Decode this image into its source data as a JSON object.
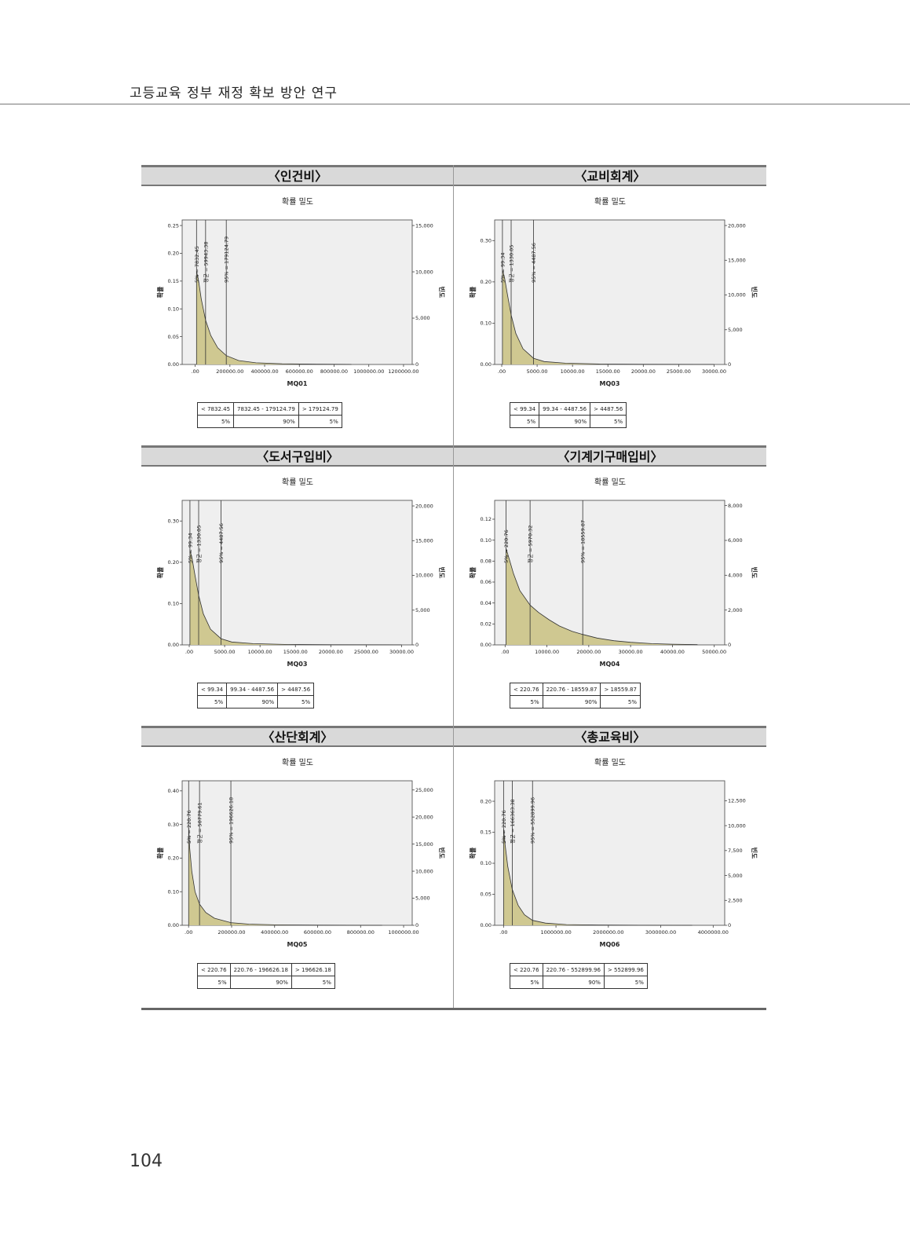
{
  "header": {
    "running_title": "고등교육 정부 재정 확보 방안 연구"
  },
  "footer": {
    "page_number": "104"
  },
  "colors": {
    "fill": "#cfc891",
    "plot_bg": "#efefef",
    "title_band": "#d9d9d9",
    "rule": "#777777"
  },
  "chart_data": [
    {
      "type": "area",
      "section_title": "〈인건비〉",
      "title": "확률 밀도",
      "xlabel": "MQ01",
      "ylabel": "확률",
      "y2label": "빈도",
      "xlim": [
        -75000,
        1250000
      ],
      "ylim": [
        0,
        0.26
      ],
      "y2lim": [
        0,
        15600
      ],
      "xticks": [
        0,
        200000,
        400000,
        600000,
        800000,
        1000000,
        1200000
      ],
      "xtick_labels": [
        ".00",
        "200000.00",
        "400000.00",
        "600000.00",
        "800000.00",
        "1000000.00",
        "1200000.00"
      ],
      "yticks": [
        0,
        0.05,
        0.1,
        0.15,
        0.2,
        0.25
      ],
      "ytick_labels": [
        "0.00",
        "0.05",
        "0.10",
        "0.15",
        "0.20",
        "0.25"
      ],
      "y2ticks": [
        0,
        5000,
        10000,
        15000
      ],
      "y2tick_labels": [
        "0",
        "5,000",
        "10,000",
        "15,000"
      ],
      "markers": [
        {
          "x": 7832.45,
          "label": "5% = 7832.45"
        },
        {
          "x": 59943.38,
          "label": "평균 = 59943.38"
        },
        {
          "x": 179124.79,
          "label": "95% = 179124.79"
        }
      ],
      "curve_x": [
        7832,
        20000,
        35000,
        59943,
        90000,
        130000,
        179125,
        250000,
        350000,
        500000,
        700000,
        900000
      ],
      "curve_y": [
        0.168,
        0.15,
        0.118,
        0.08,
        0.052,
        0.03,
        0.016,
        0.007,
        0.003,
        0.0012,
        0.0004,
        0.0001
      ],
      "summary": {
        "ranges": [
          "< 7832.45",
          "7832.45 - 179124.79",
          "> 179124.79"
        ],
        "percents": [
          "5%",
          "90%",
          "5%"
        ]
      }
    },
    {
      "type": "area",
      "section_title": "〈교비회계〉",
      "title": "확률 밀도",
      "xlabel": "MQ03",
      "ylabel": "확률",
      "y2label": "빈도",
      "xlim": [
        -1000,
        31500
      ],
      "ylim": [
        0,
        0.35
      ],
      "y2lim": [
        0,
        20800
      ],
      "xticks": [
        0,
        5000,
        10000,
        15000,
        20000,
        25000,
        30000
      ],
      "xtick_labels": [
        ".00",
        "5000.00",
        "10000.00",
        "15000.00",
        "20000.00",
        "25000.00",
        "30000.00"
      ],
      "yticks": [
        0,
        0.1,
        0.2,
        0.3
      ],
      "ytick_labels": [
        "0.00",
        "0.10",
        "0.20",
        "0.30"
      ],
      "y2ticks": [
        0,
        5000,
        10000,
        15000,
        20000
      ],
      "y2tick_labels": [
        "0",
        "5,000",
        "10,000",
        "15,000",
        "20,000"
      ],
      "markers": [
        {
          "x": 99.34,
          "label": "5% = 99.34"
        },
        {
          "x": 1330.05,
          "label": "평균 = 1330.05"
        },
        {
          "x": 4487.56,
          "label": "95% = 4487.56"
        }
      ],
      "curve_x": [
        99,
        400,
        800,
        1330,
        2000,
        3000,
        4488,
        6000,
        9000,
        14000,
        20000,
        30000
      ],
      "curve_y": [
        0.23,
        0.21,
        0.17,
        0.12,
        0.075,
        0.038,
        0.015,
        0.007,
        0.003,
        0.001,
        0.0003,
        0.0001
      ],
      "summary": {
        "ranges": [
          "< 99.34",
          "99.34 - 4487.56",
          "> 4487.56"
        ],
        "percents": [
          "5%",
          "90%",
          "5%"
        ]
      }
    },
    {
      "type": "area",
      "section_title": "〈도서구입비〉",
      "title": "확률 밀도",
      "xlabel": "MQ03",
      "ylabel": "확률",
      "y2label": "빈도",
      "xlim": [
        -1000,
        31500
      ],
      "ylim": [
        0,
        0.35
      ],
      "y2lim": [
        0,
        20800
      ],
      "xticks": [
        0,
        5000,
        10000,
        15000,
        20000,
        25000,
        30000
      ],
      "xtick_labels": [
        ".00",
        "5000.00",
        "10000.00",
        "15000.00",
        "20000.00",
        "25000.00",
        "30000.00"
      ],
      "yticks": [
        0,
        0.1,
        0.2,
        0.3
      ],
      "ytick_labels": [
        "0.00",
        "0.10",
        "0.20",
        "0.30"
      ],
      "y2ticks": [
        0,
        5000,
        10000,
        15000,
        20000
      ],
      "y2tick_labels": [
        "0",
        "5,000",
        "10,000",
        "15,000",
        "20,000"
      ],
      "markers": [
        {
          "x": 99.34,
          "label": "5% = 99.34"
        },
        {
          "x": 1330.05,
          "label": "평균 = 1330.05"
        },
        {
          "x": 4487.56,
          "label": "95% = 4487.56"
        }
      ],
      "curve_x": [
        99,
        400,
        800,
        1330,
        2000,
        3000,
        4488,
        6000,
        9000,
        14000,
        20000,
        30000
      ],
      "curve_y": [
        0.23,
        0.21,
        0.17,
        0.12,
        0.075,
        0.038,
        0.015,
        0.007,
        0.003,
        0.001,
        0.0003,
        0.0001
      ],
      "summary": {
        "ranges": [
          "< 99.34",
          "99.34 - 4487.56",
          "> 4487.56"
        ],
        "percents": [
          "5%",
          "90%",
          "5%"
        ]
      }
    },
    {
      "type": "area",
      "section_title": "〈기계기구매입비〉",
      "title": "확률 밀도",
      "xlabel": "MQ04",
      "ylabel": "확률",
      "y2label": "빈도",
      "xlim": [
        -2500,
        52500
      ],
      "ylim": [
        0,
        0.138
      ],
      "y2lim": [
        0,
        8300
      ],
      "xticks": [
        0,
        10000,
        20000,
        30000,
        40000,
        50000
      ],
      "xtick_labels": [
        ".00",
        "10000.00",
        "20000.00",
        "30000.00",
        "40000.00",
        "50000.00"
      ],
      "yticks": [
        0,
        0.02,
        0.04,
        0.06,
        0.08,
        0.1,
        0.12
      ],
      "ytick_labels": [
        "0.00",
        "0.02",
        "0.04",
        "0.06",
        "0.08",
        "0.10",
        "0.12"
      ],
      "y2ticks": [
        0,
        2000,
        4000,
        6000,
        8000
      ],
      "y2tick_labels": [
        "0",
        "2,000",
        "4,000",
        "6,000",
        "8,000"
      ],
      "markers": [
        {
          "x": 220.76,
          "label": "5% = 220.76"
        },
        {
          "x": 5970.32,
          "label": "평균 = 5970.32"
        },
        {
          "x": 18559.87,
          "label": "95% = 18559.87"
        }
      ],
      "curve_x": [
        221,
        1000,
        2000,
        3500,
        5970,
        8000,
        10500,
        13000,
        16000,
        18560,
        22000,
        26000,
        30000,
        35000,
        40000,
        46000
      ],
      "curve_y": [
        0.092,
        0.082,
        0.068,
        0.052,
        0.038,
        0.031,
        0.024,
        0.018,
        0.013,
        0.01,
        0.0065,
        0.004,
        0.0025,
        0.0012,
        0.0006,
        0.0002
      ],
      "summary": {
        "ranges": [
          "< 220.76",
          "220.76 - 18559.87",
          "> 18559.87"
        ],
        "percents": [
          "5%",
          "90%",
          "5%"
        ]
      }
    },
    {
      "type": "area",
      "section_title": "〈산단회계〉",
      "title": "확률 밀도",
      "xlabel": "MQ05",
      "ylabel": "확률",
      "y2label": "빈도",
      "xlim": [
        -30000,
        1040000
      ],
      "ylim": [
        0,
        0.43
      ],
      "y2lim": [
        0,
        26700
      ],
      "xticks": [
        0,
        200000,
        400000,
        600000,
        800000,
        1000000
      ],
      "xtick_labels": [
        ".00",
        "200000.00",
        "400000.00",
        "600000.00",
        "800000.00",
        "1000000.00"
      ],
      "yticks": [
        0,
        0.1,
        0.2,
        0.3,
        0.4
      ],
      "ytick_labels": [
        "0.00",
        "0.10",
        "0.20",
        "0.30",
        "0.40"
      ],
      "y2ticks": [
        0,
        5000,
        10000,
        15000,
        20000,
        25000
      ],
      "y2tick_labels": [
        "0",
        "5,000",
        "10,000",
        "15,000",
        "20,000",
        "25,000"
      ],
      "markers": [
        {
          "x": 220.76,
          "label": "5% = 220.76"
        },
        {
          "x": 50779.61,
          "label": "평균 = 50779.61"
        },
        {
          "x": 196626.18,
          "label": "95% = 196626.18"
        }
      ],
      "curve_x": [
        221,
        5000,
        15000,
        30000,
        50780,
        80000,
        120000,
        196626,
        280000,
        400000,
        600000,
        900000
      ],
      "curve_y": [
        0.29,
        0.23,
        0.16,
        0.1,
        0.063,
        0.038,
        0.021,
        0.008,
        0.0035,
        0.0015,
        0.0005,
        0.0001
      ],
      "summary": {
        "ranges": [
          "< 220.76",
          "220.76 - 196626.18",
          "> 196626.18"
        ],
        "percents": [
          "5%",
          "90%",
          "5%"
        ]
      }
    },
    {
      "type": "area",
      "section_title": "〈총교육비〉",
      "title": "확률 밀도",
      "xlabel": "MQ06",
      "ylabel": "확률",
      "y2label": "빈도",
      "xlim": [
        -170000,
        4220000
      ],
      "ylim": [
        0,
        0.233
      ],
      "y2lim": [
        0,
        14500
      ],
      "xticks": [
        0,
        1000000,
        2000000,
        3000000,
        4000000
      ],
      "xtick_labels": [
        ".00",
        "1000000.00",
        "2000000.00",
        "3000000.00",
        "4000000.00"
      ],
      "yticks": [
        0,
        0.05,
        0.1,
        0.15,
        0.2
      ],
      "ytick_labels": [
        "0.00",
        "0.05",
        "0.10",
        "0.15",
        "0.20"
      ],
      "y2ticks": [
        0,
        2500,
        5000,
        7500,
        10000,
        12500
      ],
      "y2tick_labels": [
        "0",
        "2,500",
        "5,000",
        "7,500",
        "10,000",
        "12,500"
      ],
      "markers": [
        {
          "x": 220.76,
          "label": "5% = 220.76"
        },
        {
          "x": 166363.38,
          "label": "평균 = 166363.38"
        },
        {
          "x": 552899.96,
          "label": "95% = 552899.96"
        }
      ],
      "curve_x": [
        221,
        30000,
        80000,
        166363,
        280000,
        400000,
        552900,
        800000,
        1200000,
        1800000,
        2600000,
        3600000
      ],
      "curve_y": [
        0.155,
        0.13,
        0.095,
        0.058,
        0.032,
        0.017,
        0.008,
        0.0035,
        0.0012,
        0.0004,
        0.0001,
        3e-05
      ],
      "summary": {
        "ranges": [
          "< 220.76",
          "220.76 - 552899.96",
          "> 552899.96"
        ],
        "percents": [
          "5%",
          "90%",
          "5%"
        ]
      }
    }
  ]
}
